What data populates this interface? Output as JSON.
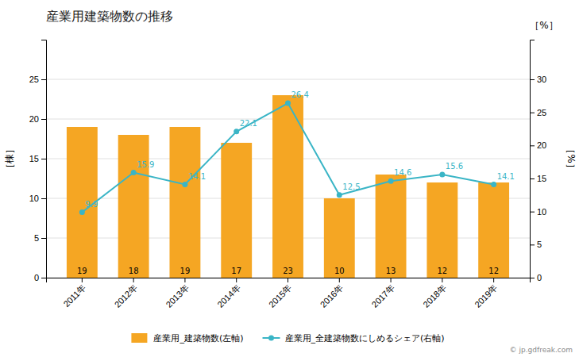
{
  "chart_data": {
    "type": "bar",
    "title": "産業用建築物数の推移",
    "categories": [
      "2011年",
      "2012年",
      "2013年",
      "2014年",
      "2015年",
      "2016年",
      "2017年",
      "2018年",
      "2019年"
    ],
    "series": [
      {
        "name": "産業用_建築物数(左軸)",
        "type": "bar",
        "color": "#f5a623",
        "values": [
          19,
          18,
          19,
          17,
          23,
          10,
          13,
          12,
          12
        ]
      },
      {
        "name": "産業用_全建築物数にしめるシェア(右軸)",
        "type": "line",
        "color": "#3ab5c6",
        "marker": "circle",
        "axis": "y2",
        "values": [
          9.9,
          15.9,
          14.1,
          22.1,
          26.4,
          12.5,
          14.6,
          15.6,
          14.1
        ]
      }
    ],
    "ylabel": "［棟］",
    "y2label": "［%］",
    "ylim": [
      0,
      30
    ],
    "yticks": [
      0,
      5,
      10,
      15,
      20,
      25
    ],
    "y2lim": [
      0,
      36
    ],
    "y2ticks": [
      0,
      5,
      10,
      15,
      20,
      25,
      30
    ],
    "grid": true,
    "legend": "bottom",
    "data_labels": true,
    "annotations": [
      "［%］",
      "© jp.gdfreak.com"
    ]
  }
}
